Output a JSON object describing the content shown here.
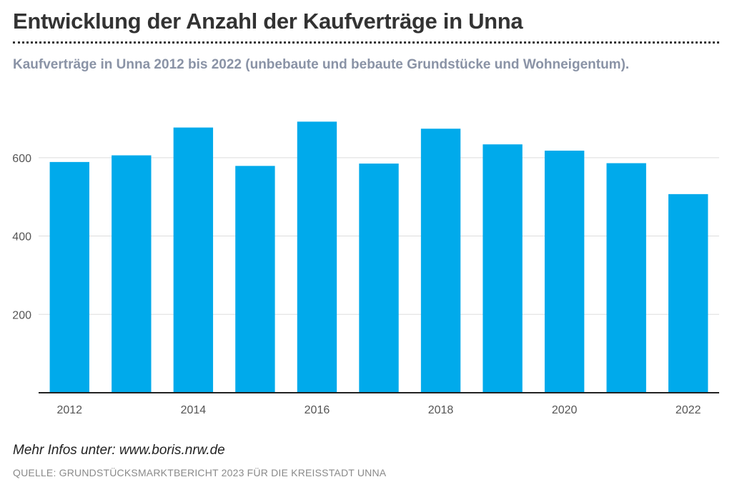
{
  "header": {
    "title": "Entwicklung der Anzahl der Kaufverträge in Unna",
    "subtitle": "Kaufverträge in Unna 2012 bis 2022 (unbebaute und bebaute Grundstücke und Wohneigentum)."
  },
  "footer": {
    "info": "Mehr Infos unter: www.boris.nrw.de",
    "source": "QUELLE: GRUNDSTÜCKSMARKTBERICHT 2023 FÜR DIE KREISSTADT UNNA"
  },
  "colors": {
    "bar": "#00aaeb",
    "grid": "#dddddd",
    "axis": "#222222"
  },
  "chart_data": {
    "type": "bar",
    "title": "Entwicklung der Anzahl der Kaufverträge in Unna",
    "subtitle": "Kaufverträge in Unna 2012 bis 2022 (unbebaute und bebaute Grundstücke und Wohneigentum).",
    "xlabel": "",
    "ylabel": "",
    "categories": [
      "2012",
      "2013",
      "2014",
      "2015",
      "2016",
      "2017",
      "2018",
      "2019",
      "2020",
      "2021",
      "2022"
    ],
    "values": [
      589,
      606,
      677,
      579,
      692,
      585,
      674,
      634,
      618,
      586,
      507
    ],
    "x_tick_labels": [
      "2012",
      "2014",
      "2016",
      "2018",
      "2020",
      "2022"
    ],
    "y_ticks": [
      200,
      400,
      600
    ],
    "y_tick_labels": [
      "200",
      "400",
      "600"
    ],
    "ylim": [
      0,
      720
    ],
    "grid": true,
    "legend": "none"
  }
}
